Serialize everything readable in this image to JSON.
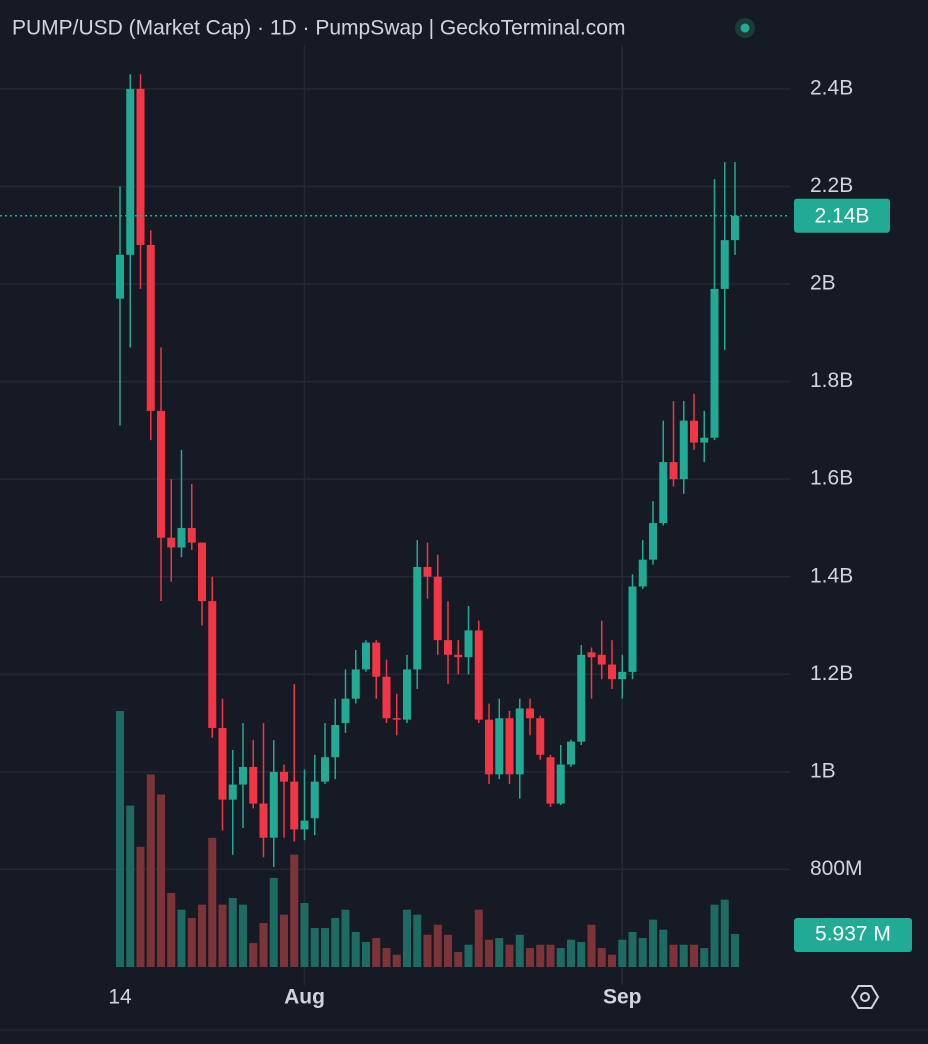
{
  "chart_data": {
    "type": "candlestick",
    "title": "PUMP/USD (Market Cap) · 1D · PumpSwap | GeckoTerminal.com",
    "categories": [
      "14",
      null,
      null,
      null,
      null,
      null,
      null,
      null,
      null,
      null,
      null,
      null,
      null,
      null,
      null,
      null,
      null,
      null,
      "Aug",
      null,
      null,
      null,
      null,
      null,
      null,
      null,
      null,
      null,
      null,
      null,
      null,
      null,
      null,
      null,
      null,
      null,
      null,
      null,
      null,
      null,
      null,
      null,
      null,
      null,
      null,
      null,
      null,
      null,
      null,
      "Sep",
      null,
      null,
      null,
      null,
      null,
      null,
      null,
      null,
      null,
      null,
      null
    ],
    "open": [
      1970000000.0,
      2060000000.0,
      2400000000.0,
      2080000000.0,
      1740000000.0,
      1480000000.0,
      1460000000.0,
      1500000000.0,
      1470000000.0,
      1350000000.0,
      1090000000.0,
      943000000.0,
      974000000.0,
      1010000000.0,
      935000000.0,
      865000000.0,
      1000000000.0,
      980000000.0,
      882000000.0,
      905000000.0,
      980000000.0,
      1030000000.0,
      1100000000.0,
      1150000000.0,
      1210000000.0,
      1265000000.0,
      1195000000.0,
      1110000000.0,
      1107000000.0,
      1210000000.0,
      1420000000.0,
      1400000000.0,
      1270000000.0,
      1240000000.0,
      1235000000.0,
      1290000000.0,
      1107000000.0,
      995000000.0,
      1110000000.0,
      995000000.0,
      1130000000.0,
      1110000000.0,
      1030000000.0,
      935000000.0,
      1015000000.0,
      1062000000.0,
      1245000000.0,
      1240000000.0,
      1220000000.0,
      1190000000.0,
      1205000000.0,
      1380000000.0,
      1435000000.0,
      1510000000.0,
      1635000000.0,
      1600000000.0,
      1720000000.0,
      1675000000.0,
      1685000000.0,
      1990000000.0,
      2090000000.0
    ],
    "high": [
      2200000000.0,
      2430000000.0,
      2430000000.0,
      2110000000.0,
      1870000000.0,
      1600000000.0,
      1660000000.0,
      1590000000.0,
      1470000000.0,
      1400000000.0,
      1150000000.0,
      1045000000.0,
      1100000000.0,
      1065000000.0,
      1100000000.0,
      1065000000.0,
      1015000000.0,
      1180000000.0,
      1005000000.0,
      1035000000.0,
      1100000000.0,
      1150000000.0,
      1210000000.0,
      1250000000.0,
      1270000000.0,
      1270000000.0,
      1230000000.0,
      1160000000.0,
      1240000000.0,
      1475000000.0,
      1470000000.0,
      1445000000.0,
      1350000000.0,
      1270000000.0,
      1340000000.0,
      1310000000.0,
      1140000000.0,
      1150000000.0,
      1125000000.0,
      1150000000.0,
      1150000000.0,
      1115000000.0,
      1035000000.0,
      1055000000.0,
      1066000000.0,
      1260000000.0,
      1255000000.0,
      1310000000.0,
      1270000000.0,
      1240000000.0,
      1405000000.0,
      1475000000.0,
      1555000000.0,
      1720000000.0,
      1760000000.0,
      1760000000.0,
      1775000000.0,
      1740000000.0,
      2215000000.0,
      2250000000.0,
      2250000000.0
    ],
    "low": [
      1710000000.0,
      1870000000.0,
      1990000000.0,
      1680000000.0,
      1350000000.0,
      1390000000.0,
      1440000000.0,
      1455000000.0,
      1300000000.0,
      1070000000.0,
      880000000.0,
      830000000.0,
      885000000.0,
      925000000.0,
      825000000.0,
      805000000.0,
      865000000.0,
      857000000.0,
      860000000.0,
      870000000.0,
      975000000.0,
      985000000.0,
      1080000000.0,
      1140000000.0,
      1205000000.0,
      1150000000.0,
      1100000000.0,
      1075000000.0,
      1100000000.0,
      1170000000.0,
      1355000000.0,
      1240000000.0,
      1180000000.0,
      1200000000.0,
      1200000000.0,
      1100000000.0,
      975000000.0,
      985000000.0,
      975000000.0,
      945000000.0,
      1075000000.0,
      1025000000.0,
      928000000.0,
      932000000.0,
      1010000000.0,
      1055000000.0,
      1150000000.0,
      1190000000.0,
      1170000000.0,
      1150000000.0,
      1190000000.0,
      1375000000.0,
      1425000000.0,
      1505000000.0,
      1585000000.0,
      1570000000.0,
      1660000000.0,
      1635000000.0,
      1680000000.0,
      1865000000.0,
      2060000000.0
    ],
    "close": [
      2060000000.0,
      2400000000.0,
      2080000000.0,
      1740000000.0,
      1480000000.0,
      1460000000.0,
      1500000000.0,
      1470000000.0,
      1350000000.0,
      1090000000.0,
      943000000.0,
      974000000.0,
      1010000000.0,
      935000000.0,
      865000000.0,
      1000000000.0,
      980000000.0,
      882000000.0,
      900000000.0,
      980000000.0,
      1030000000.0,
      1096000000.0,
      1150000000.0,
      1210000000.0,
      1265000000.0,
      1195000000.0,
      1110000000.0,
      1107000000.0,
      1210000000.0,
      1420000000.0,
      1400000000.0,
      1270000000.0,
      1240000000.0,
      1235000000.0,
      1290000000.0,
      1107000000.0,
      995000000.0,
      1110000000.0,
      995000000.0,
      1130000000.0,
      1110000000.0,
      1035000000.0,
      935000000.0,
      1015000000.0,
      1062000000.0,
      1240000000.0,
      1235000000.0,
      1220000000.0,
      1190000000.0,
      1205000000.0,
      1380000000.0,
      1435000000.0,
      1510000000.0,
      1635000000.0,
      1600000000.0,
      1720000000.0,
      1675000000.0,
      1685000000.0,
      1990000000.0,
      2090000000.0,
      2140000000.0
    ],
    "volume": [
      46000000.0,
      29000000.0,
      21600000.0,
      34600000.0,
      31000000.0,
      13300000.0,
      10300000.0,
      8800000.0,
      11200000.0,
      23200000.0,
      11200000.0,
      12400000.0,
      11200000.0,
      4300000.0,
      7900000.0,
      16000000.0,
      9400000.0,
      20200000.0,
      11500000.0,
      7000000.0,
      7000000.0,
      8800000.0,
      10300000.0,
      6300000.0,
      4500000.0,
      5200000.0,
      3400000.0,
      2200000.0,
      10300000.0,
      9400000.0,
      5800000.0,
      7600000.0,
      5800000.0,
      2700000.0,
      4000000.0,
      10300000.0,
      4900000.0,
      5200000.0,
      4000000.0,
      5800000.0,
      3400000.0,
      4000000.0,
      4000000.0,
      3400000.0,
      4900000.0,
      4500000.0,
      7600000.0,
      3400000.0,
      2200000.0,
      4900000.0,
      6300000.0,
      5200000.0,
      8500000.0,
      6700000.0,
      4000000.0,
      4000000.0,
      4000000.0,
      3400000.0,
      11200000.0,
      12100000.0,
      5937000.0
    ],
    "price_label": "2.14B",
    "volume_label": "5.937 M",
    "ylim": [
      600000000.0,
      2490000000.0
    ],
    "yticks": [
      {
        "value": 800000000.0,
        "label": "800M"
      },
      {
        "value": 1000000000.0,
        "label": "1B"
      },
      {
        "value": 1200000000.0,
        "label": "1.2B"
      },
      {
        "value": 1400000000.0,
        "label": "1.4B"
      },
      {
        "value": 1600000000.0,
        "label": "1.6B"
      },
      {
        "value": 1800000000.0,
        "label": "1.8B"
      },
      {
        "value": 2000000000.0,
        "label": "2B"
      },
      {
        "value": 2200000000.0,
        "label": "2.2B"
      },
      {
        "value": 2400000000.0,
        "label": "2.4B"
      }
    ],
    "grid": true,
    "up_color": "#22ab94",
    "down_color": "#f23645",
    "volume_up_color": "#1d6b62",
    "volume_down_color": "#7d3439"
  }
}
